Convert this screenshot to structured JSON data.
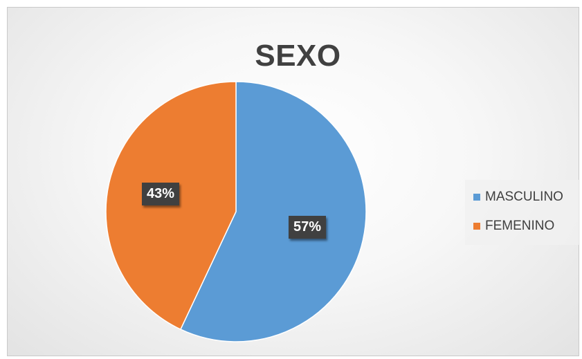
{
  "chart_data": {
    "type": "pie",
    "title": "SEXO",
    "categories": [
      "MASCULINO",
      "FEMENINO"
    ],
    "values": [
      57,
      43
    ],
    "data_labels": [
      "57%",
      "43%"
    ],
    "colors": [
      "#5B9BD5",
      "#ED7D31"
    ],
    "legend_position": "right",
    "start_angle_deg": 0,
    "direction": "clockwise"
  }
}
